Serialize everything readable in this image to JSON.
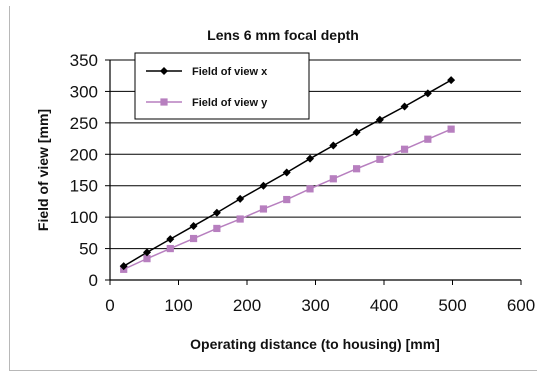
{
  "chart_data": {
    "type": "line",
    "title": "Lens 6 mm focal depth",
    "xlabel": "Operating distance (to housing) [mm]",
    "ylabel": "Field of view [mm]",
    "xlim": [
      0,
      600
    ],
    "ylim": [
      0,
      350
    ],
    "xticks": [
      "0",
      "100",
      "200",
      "300",
      "400",
      "500",
      "600"
    ],
    "yticks": [
      "0",
      "50",
      "100",
      "150",
      "200",
      "250",
      "300",
      "350"
    ],
    "grid": "horizontal",
    "legend_position": "top-left",
    "series": [
      {
        "name": "Field of view x",
        "color": "#000000",
        "marker": "diamond",
        "x": [
          20,
          54,
          88,
          122,
          156,
          190,
          224,
          258,
          292,
          326,
          360,
          394,
          430,
          464,
          498
        ],
        "y": [
          22,
          44,
          65,
          86,
          107,
          129,
          150,
          171,
          193,
          214,
          235,
          255,
          276,
          297,
          318
        ]
      },
      {
        "name": "Field of view y",
        "color": "#b77fbf",
        "marker": "square",
        "x": [
          20,
          54,
          88,
          122,
          156,
          190,
          224,
          258,
          292,
          326,
          360,
          394,
          430,
          464,
          498
        ],
        "y": [
          17,
          34,
          50,
          66,
          82,
          97,
          113,
          128,
          145,
          161,
          177,
          192,
          208,
          224,
          240
        ]
      }
    ]
  }
}
